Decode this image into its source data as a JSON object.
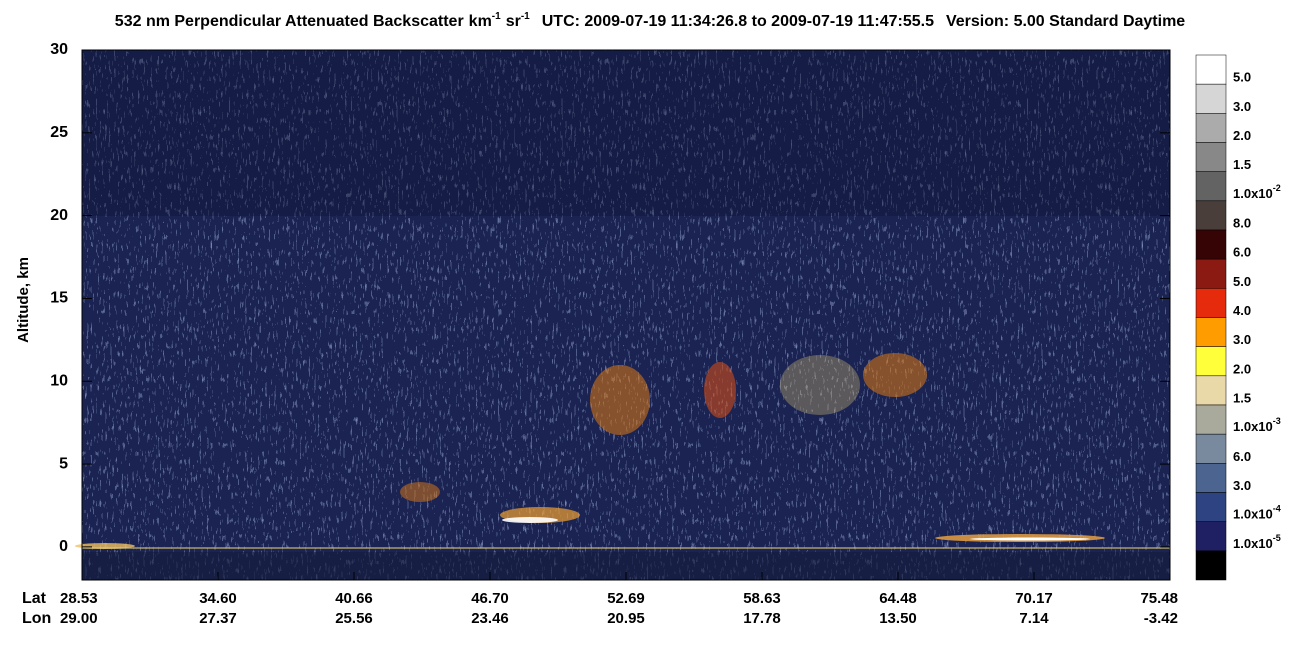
{
  "chart_data": {
    "type": "curtain",
    "title": "532 nm Perpendicular Attenuated Backscatter",
    "units": [
      "km",
      "-1",
      "sr",
      "-1"
    ],
    "time_range": "UTC: 2009-07-19 11:34:26.8 to 2009-07-19 11:47:55.5",
    "version": "Version: 5.00 Standard Daytime",
    "ylabel": "Altitude, km",
    "ylim": [
      -2,
      30
    ],
    "yticks": [
      0,
      5,
      10,
      15,
      20,
      25,
      30
    ],
    "x_rows": [
      "Lat",
      "Lon"
    ],
    "lat": [
      "28.53",
      "34.60",
      "40.66",
      "46.70",
      "52.69",
      "58.63",
      "64.48",
      "70.17",
      "75.48"
    ],
    "lon": [
      "29.00",
      "27.37",
      "25.56",
      "23.46",
      "20.95",
      "17.78",
      "13.50",
      "7.14",
      "-3.42"
    ],
    "colorbar": {
      "colors": [
        "#ffffff",
        "#d6d6d6",
        "#ababab",
        "#888888",
        "#636363",
        "#4a3e3a",
        "#360404",
        "#8a1a12",
        "#e62a0c",
        "#ff9c00",
        "#ffff3a",
        "#e9d9a8",
        "#a9aa9c",
        "#7a8a9e",
        "#4b6590",
        "#2e4482",
        "#1f2064",
        "#000000"
      ],
      "labels": [
        "5.0",
        "3.0",
        "2.0",
        "1.5",
        {
          "mantissa": "1.0x10",
          "exp": "-2"
        },
        "8.0",
        "6.0",
        "5.0",
        "4.0",
        "3.0",
        "2.0",
        "1.5",
        {
          "mantissa": "1.0x10",
          "exp": "-3"
        },
        "6.0",
        "3.0",
        {
          "mantissa": "1.0x10",
          "exp": "-4"
        },
        {
          "mantissa": "1.0x10",
          "exp": "-5"
        }
      ]
    }
  }
}
